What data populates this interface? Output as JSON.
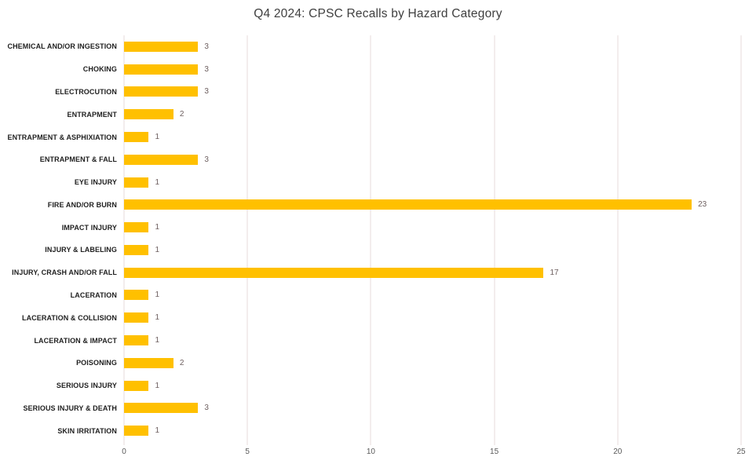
{
  "chart_data": {
    "type": "bar",
    "orientation": "horizontal",
    "title": "Q4 2024: CPSC Recalls by Hazard Category",
    "categories": [
      "CHEMICAL AND/OR INGESTION",
      "CHOKING",
      "ELECTROCUTION",
      "ENTRAPMENT",
      "ENTRAPMENT & ASPHIXIATION",
      "ENTRAPMENT & FALL",
      "EYE INJURY",
      "FIRE AND/OR BURN",
      "IMPACT INJURY",
      "INJURY & LABELING",
      "INJURY, CRASH AND/OR FALL",
      "LACERATION",
      "LACERATION & COLLISION",
      "LACERATION & IMPACT",
      "POISONING",
      "SERIOUS INJURY",
      "SERIOUS INJURY & DEATH",
      "SKIN IRRITATION"
    ],
    "values": [
      3,
      3,
      3,
      2,
      1,
      3,
      1,
      23,
      1,
      1,
      17,
      1,
      1,
      1,
      2,
      1,
      3,
      1
    ],
    "xlabel": "",
    "ylabel": "",
    "xlim": [
      0,
      25
    ],
    "x_ticks": [
      0,
      5,
      10,
      15,
      20,
      25
    ],
    "grid": true,
    "legend": false,
    "colors": {
      "bar": "#FFC000",
      "value_label": "#6e6060",
      "category_label": "#1f1f1f",
      "title": "#3f3f3f",
      "gridline": "#e7dbdb",
      "tick_label": "#595959"
    }
  }
}
